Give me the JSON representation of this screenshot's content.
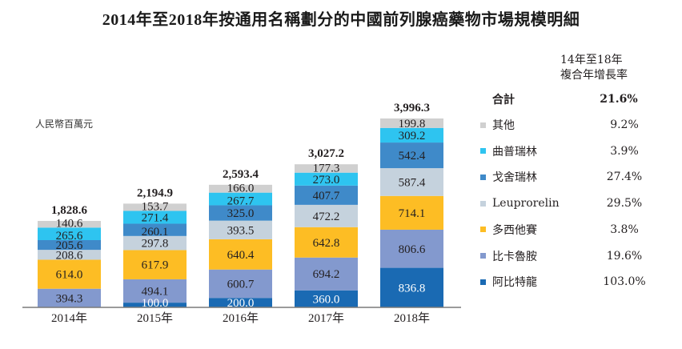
{
  "title": "2014年至2018年按通用名稱劃分的中國前列腺癌藥物市場規模明細",
  "unit_label": "人民幣百萬元",
  "cagr_header": [
    "14年至18年",
    "複合年增長率"
  ],
  "total_row": {
    "label": "合計",
    "cagr": "21.6%"
  },
  "chart_data": {
    "type": "bar",
    "stacked": true,
    "title": "2014年至2018年按通用名稱劃分的中國前列腺癌藥物市場規模明細",
    "ylabel": "人民幣百萬元",
    "xlabel": "",
    "categories": [
      "2014年",
      "2015年",
      "2016年",
      "2017年",
      "2018年"
    ],
    "totals": [
      "1,828.6",
      "2,194.9",
      "2,593.4",
      "3,027.2",
      "3,996.3"
    ],
    "total_values": [
      1828.6,
      2194.9,
      2593.4,
      3027.2,
      3996.3
    ],
    "ylim": [
      0,
      4000
    ],
    "grid": false,
    "legend_position": "right",
    "series": [
      {
        "name": "阿比特龍",
        "color": "#1A6AB3",
        "light_text": true,
        "cagr": "103.0%",
        "values": [
          0,
          100.0,
          200.0,
          360.0,
          836.8
        ]
      },
      {
        "name": "比卡魯胺",
        "color": "#8399CE",
        "light_text": false,
        "cagr": "19.6%",
        "values": [
          394.3,
          494.1,
          600.7,
          694.2,
          806.6
        ]
      },
      {
        "name": "多西他賽",
        "color": "#FDBD24",
        "light_text": false,
        "cagr": "3.8%",
        "values": [
          614.0,
          617.9,
          640.4,
          642.8,
          714.1
        ]
      },
      {
        "name": "Leuprorelin",
        "color": "#C5D2DD",
        "light_text": false,
        "cagr": "29.5%",
        "values": [
          208.6,
          297.8,
          393.5,
          472.2,
          587.4
        ]
      },
      {
        "name": "戈舍瑞林",
        "color": "#3F8AC9",
        "light_text": false,
        "cagr": "27.4%",
        "values": [
          205.6,
          260.1,
          325.0,
          407.7,
          542.4
        ]
      },
      {
        "name": "曲普瑞林",
        "color": "#2EC4F0",
        "light_text": false,
        "cagr": "3.9%",
        "values": [
          265.6,
          271.4,
          267.7,
          273.0,
          309.2
        ]
      },
      {
        "name": "其他",
        "color": "#D0D0D0",
        "light_text": false,
        "cagr": "9.2%",
        "values": [
          140.6,
          153.7,
          166.0,
          177.3,
          199.8
        ]
      }
    ],
    "legend_order": [
      "其他",
      "曲普瑞林",
      "戈舍瑞林",
      "Leuprorelin",
      "多西他賽",
      "比卡魯胺",
      "阿比特龍"
    ]
  }
}
